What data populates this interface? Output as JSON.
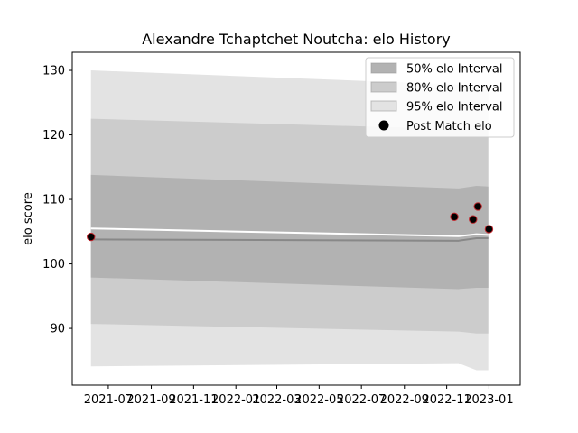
{
  "chart_data": {
    "type": "line",
    "title": "Alexandre Tchaptchet Noutcha: elo History",
    "xlabel": "",
    "ylabel": "elo score",
    "xlim": [
      "2021-05-10",
      "2023-02-15"
    ],
    "ylim": [
      81.2,
      132.8
    ],
    "x_ticks": [
      "2021-07",
      "2021-09",
      "2021-11",
      "2022-01",
      "2022-03",
      "2022-05",
      "2022-07",
      "2022-09",
      "2022-11",
      "2023-01"
    ],
    "y_ticks": [
      90,
      100,
      110,
      120,
      130
    ],
    "grid": false,
    "legend_position": "top-right",
    "dates": [
      "2021-06-06",
      "2022-11-18",
      "2022-12-14",
      "2022-12-31"
    ],
    "series": [
      {
        "name": "50% elo Interval",
        "upper": [
          113.8,
          111.7,
          112.1,
          112.0
        ],
        "lower": [
          97.9,
          96.1,
          96.3,
          96.3
        ],
        "color": "#b2b2b2"
      },
      {
        "name": "80% elo Interval",
        "upper": [
          122.5,
          120.9,
          120.8,
          120.8
        ],
        "lower": [
          90.7,
          89.5,
          89.2,
          89.2
        ],
        "color": "#cccccc"
      },
      {
        "name": "95% elo Interval",
        "upper": [
          130.0,
          127.8,
          127.6,
          127.5
        ],
        "lower": [
          84.1,
          84.6,
          83.5,
          83.5
        ],
        "color": "#e3e3e3"
      }
    ],
    "mean_line": {
      "values": [
        103.8,
        103.6,
        104.0,
        104.0
      ],
      "color": "#888888"
    },
    "rating_line": {
      "values": [
        105.5,
        104.3,
        104.6,
        104.5
      ],
      "color": "#ffffff"
    },
    "post_match": {
      "name": "Post Match elo",
      "dates": [
        "2021-06-06",
        "2022-11-12",
        "2022-12-09",
        "2022-12-16",
        "2023-01-01"
      ],
      "values": [
        104.2,
        107.3,
        106.9,
        108.9,
        105.4
      ],
      "fill": "#000000",
      "edge": "#c0272d"
    }
  }
}
